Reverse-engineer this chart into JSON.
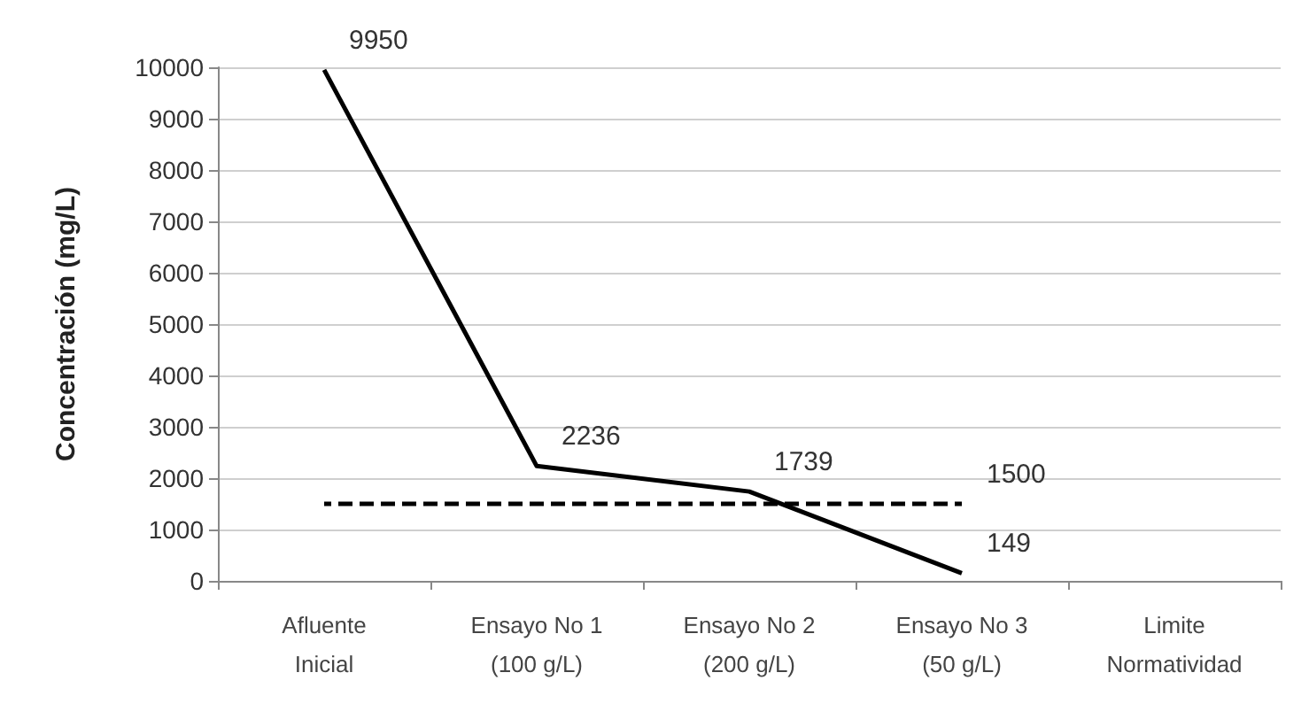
{
  "chart_data": {
    "type": "line",
    "ylabel": "Concentración (mg/L)",
    "categories": [
      "Afluente\nInicial",
      "Ensayo No 1\n(100 g/L)",
      "Ensayo No 2\n(200 g/L)",
      "Ensayo No 3\n(50 g/L)",
      "Limite\nNormatividad"
    ],
    "series": [
      {
        "color": "#000000",
        "line_style": "solid",
        "values": [
          9950,
          2236,
          1739,
          149,
          null
        ],
        "value_labels": [
          "9950",
          "2236",
          "1739",
          "149",
          null
        ]
      },
      {
        "color": "#000000",
        "line_style": "dashed",
        "values": [
          1500,
          1500,
          1500,
          1500,
          null
        ],
        "value_labels": [
          null,
          null,
          null,
          "1500",
          null
        ]
      }
    ],
    "ylim": [
      0,
      10000
    ],
    "yticks": [
      0,
      1000,
      2000,
      3000,
      4000,
      5000,
      6000,
      7000,
      8000,
      9000,
      10000
    ],
    "grid": "y",
    "marker": "none"
  }
}
